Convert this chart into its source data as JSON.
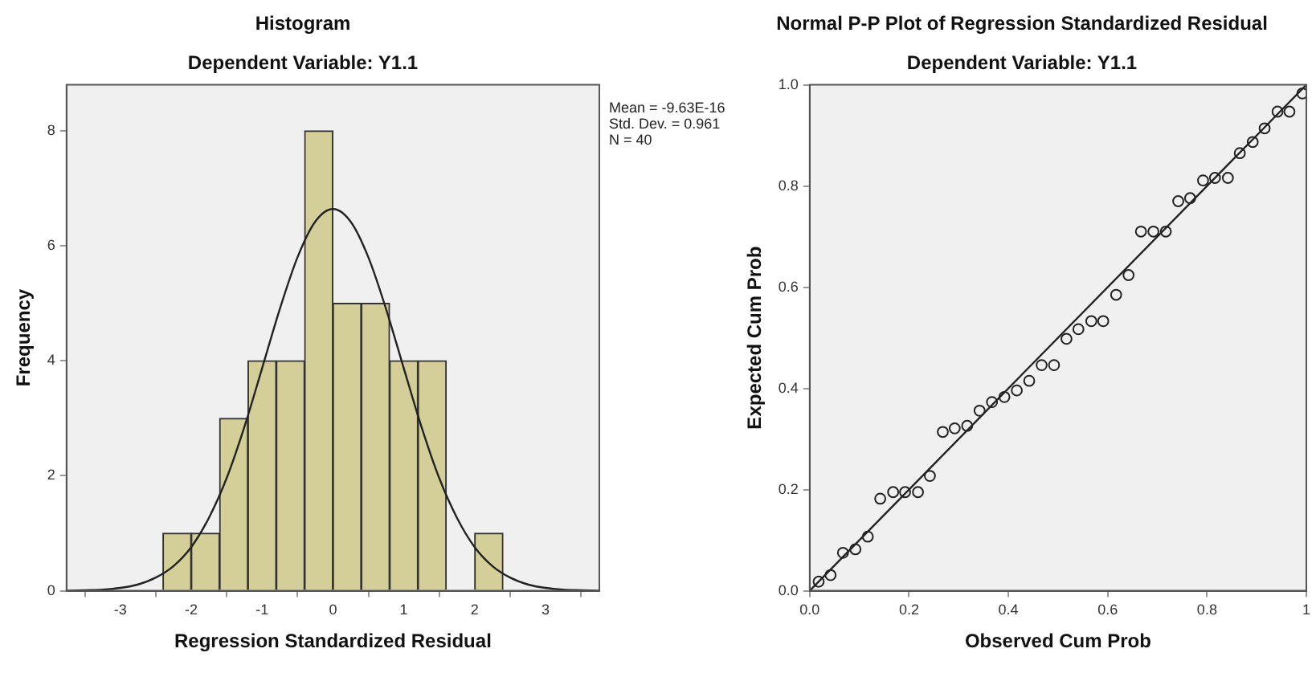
{
  "chart_data": [
    {
      "type": "histogram",
      "title": "Histogram",
      "subtitle": "Dependent Variable: Y1.1",
      "xlabel": "Regression Standardized Residual",
      "ylabel": "Frequency",
      "bins": [
        -2.4,
        -2.0,
        -1.6,
        -1.2,
        -0.8,
        -0.4,
        0,
        0.4,
        0.8,
        1.2,
        1.6,
        2.0,
        2.4
      ],
      "values": [
        1,
        1,
        3,
        4,
        4,
        8,
        5,
        5,
        4,
        4,
        0,
        1
      ],
      "color": "#d4cf98",
      "series": [
        {
          "type": "line",
          "color": "#222222",
          "x": [
            -3.75,
            -3.5,
            -3.25,
            -3,
            -2.75,
            -2.5,
            -2.25,
            -2,
            -1.75,
            -1.5,
            -1.25,
            -1,
            -0.75,
            -0.5,
            -0.25,
            0,
            0.25,
            0.5,
            0.75,
            1,
            1.25,
            1.5,
            1.75,
            2,
            2.25,
            2.5,
            2.75,
            3,
            3.25,
            3.5,
            3.75
          ],
          "values": [
            0,
            0.01,
            0.02,
            0.05,
            0.11,
            0.23,
            0.43,
            0.76,
            1.27,
            1.96,
            2.85,
            3.87,
            4.9,
            5.8,
            6.42,
            6.64,
            6.42,
            5.8,
            4.9,
            3.87,
            2.85,
            1.96,
            1.27,
            0.76,
            0.43,
            0.23,
            0.11,
            0.05,
            0.02,
            0.01,
            0
          ]
        }
      ],
      "xlim": [
        -3.76,
        3.76
      ],
      "xticks": [
        -3,
        -2,
        -1,
        0,
        1,
        2,
        3
      ],
      "ylim": [
        0,
        8.8
      ],
      "yticks": [
        0,
        2,
        4,
        6,
        8
      ],
      "annotations": [
        "Mean = -9.63E-16",
        "Std. Dev. = 0.961",
        "N = 40"
      ],
      "grid": false,
      "legend": false
    },
    {
      "type": "scatter",
      "title": "Normal P-P Plot of Regression Standardized Residual",
      "subtitle": "Dependent Variable: Y1.1",
      "xlabel": "Observed Cum Prob",
      "ylabel": "Expected Cum Prob",
      "series": [
        {
          "type": "scatter",
          "marker": "circle",
          "color": "#222222",
          "x": [
            0.018,
            0.042,
            0.067,
            0.092,
            0.117,
            0.142,
            0.168,
            0.192,
            0.218,
            0.242,
            0.268,
            0.292,
            0.317,
            0.342,
            0.367,
            0.392,
            0.417,
            0.442,
            0.467,
            0.492,
            0.517,
            0.541,
            0.567,
            0.591,
            0.617,
            0.642,
            0.667,
            0.692,
            0.717,
            0.742,
            0.766,
            0.792,
            0.816,
            0.842,
            0.866,
            0.892,
            0.916,
            0.942,
            0.966,
            0.992
          ],
          "values": [
            0.018,
            0.031,
            0.075,
            0.082,
            0.107,
            0.182,
            0.195,
            0.195,
            0.195,
            0.227,
            0.314,
            0.321,
            0.326,
            0.356,
            0.373,
            0.383,
            0.396,
            0.415,
            0.446,
            0.446,
            0.498,
            0.517,
            0.533,
            0.533,
            0.585,
            0.624,
            0.71,
            0.71,
            0.71,
            0.77,
            0.776,
            0.811,
            0.816,
            0.816,
            0.865,
            0.887,
            0.914,
            0.947,
            0.947,
            0.983
          ]
        },
        {
          "type": "line",
          "marker": "none",
          "color": "#222222",
          "x": [
            0,
            1
          ],
          "values": [
            0,
            1
          ]
        }
      ],
      "xlim": [
        0,
        1
      ],
      "xticks": [
        {
          "value": 0,
          "label": "0.0"
        },
        {
          "value": 0.2,
          "label": "0.2"
        },
        {
          "value": 0.4,
          "label": "0.4"
        },
        {
          "value": 0.6,
          "label": "0.6"
        },
        {
          "value": 0.8,
          "label": "0.8"
        },
        1
      ],
      "ylim": [
        0,
        1
      ],
      "yticks": [
        {
          "value": 0,
          "label": "0.0"
        },
        {
          "value": 0.2,
          "label": "0.2"
        },
        {
          "value": 0.4,
          "label": "0.4"
        },
        {
          "value": 0.6,
          "label": "0.6"
        },
        {
          "value": 0.8,
          "label": "0.8"
        },
        {
          "value": 1,
          "label": "1.0"
        }
      ],
      "grid": false,
      "legend": false
    }
  ]
}
